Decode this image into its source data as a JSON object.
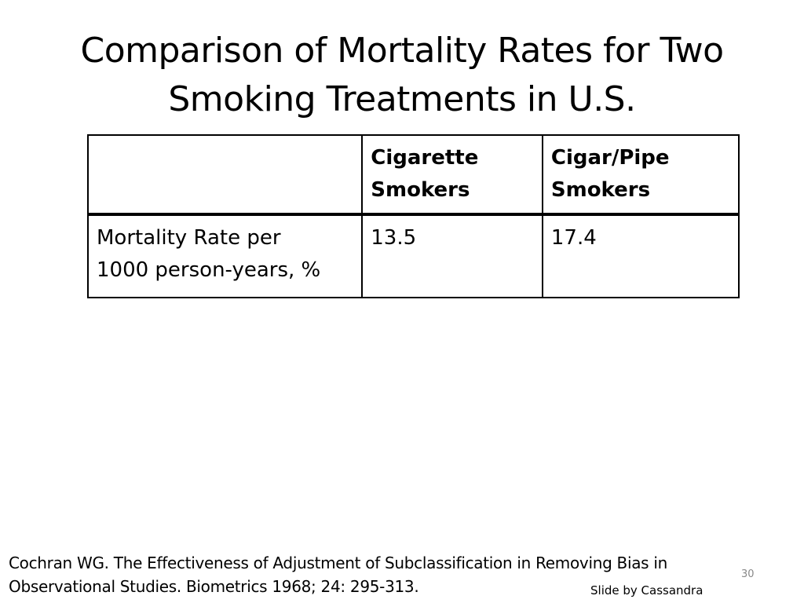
{
  "slide": {
    "title_line_1": "Comparison of Mortality Rates for Two",
    "title_line_2": "Smoking Treatments in U.S."
  },
  "table": {
    "headers": [
      {
        "line_1": "",
        "line_2": ""
      },
      {
        "line_1": "Cigarette",
        "line_2": "Smokers"
      },
      {
        "line_1": "Cigar/Pipe",
        "line_2": "Smokers"
      }
    ],
    "rows": [
      {
        "label_line_1": "Mortality Rate per",
        "label_line_2": "1000 person-years, %",
        "values": [
          "13.5",
          "17.4"
        ]
      }
    ]
  },
  "citation": {
    "line_1": "Cochran WG. The Effectiveness of Adjustment of Subclassification in Removing Bias in",
    "line_2": "Observational Studies. Biometrics 1968; 24: 295-313."
  },
  "page_number": "30",
  "credit_text": "Slide by Cassandra"
}
